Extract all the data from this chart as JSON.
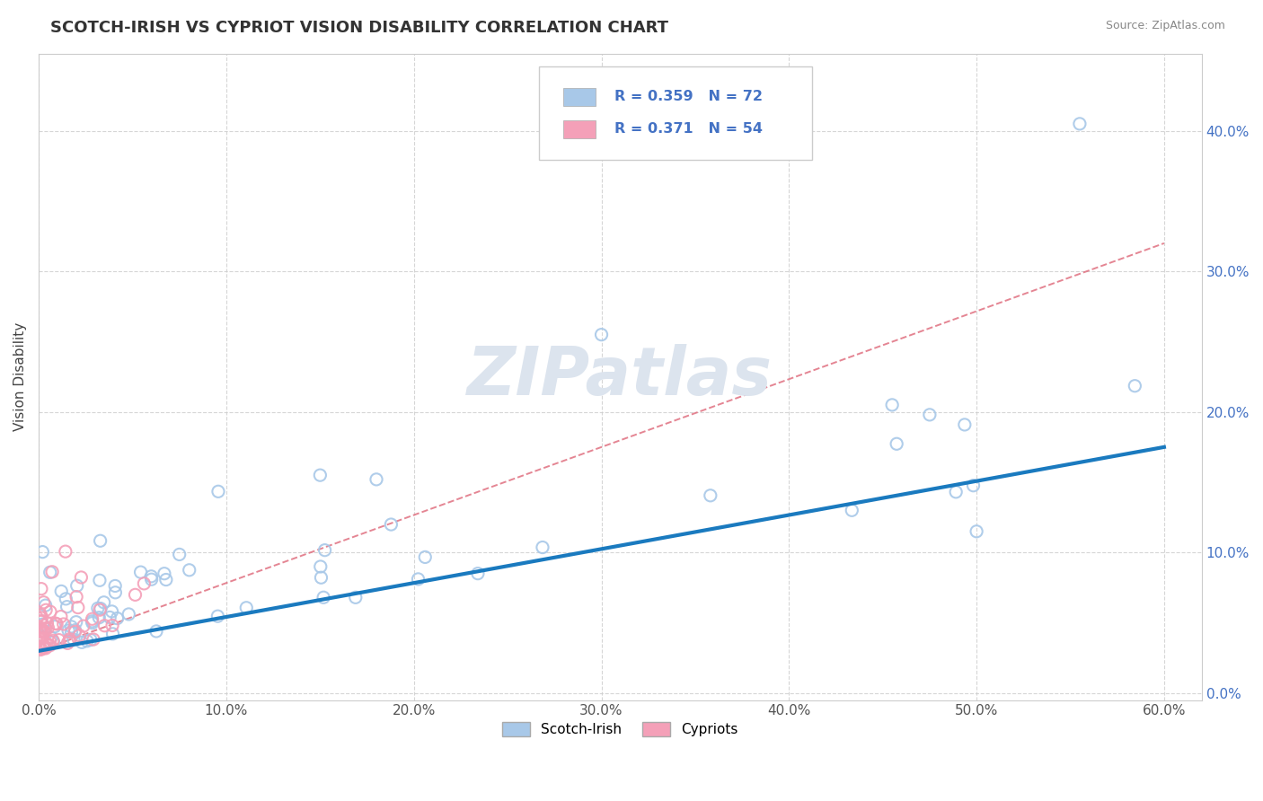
{
  "title": "SCOTCH-IRISH VS CYPRIOT VISION DISABILITY CORRELATION CHART",
  "source": "Source: ZipAtlas.com",
  "ylabel": "Vision Disability",
  "xlim": [
    0.0,
    0.62
  ],
  "ylim": [
    -0.005,
    0.455
  ],
  "xticks": [
    0.0,
    0.1,
    0.2,
    0.3,
    0.4,
    0.5,
    0.6
  ],
  "yticks": [
    0.0,
    0.1,
    0.2,
    0.3,
    0.4
  ],
  "legend_r1": "R = 0.359",
  "legend_n1": "N = 72",
  "legend_r2": "R = 0.371",
  "legend_n2": "N = 54",
  "blue_color": "#a8c8e8",
  "pink_color": "#f4a0b8",
  "blue_line_color": "#1a7abf",
  "pink_dash_color": "#e07080",
  "watermark_color": "#dce4ee",
  "title_color": "#333333",
  "source_color": "#888888",
  "right_tick_color": "#4472C4",
  "blue_trend_start_y": 0.03,
  "blue_trend_end_y": 0.175,
  "pink_trend_start_y": 0.03,
  "pink_trend_end_y": 0.32
}
